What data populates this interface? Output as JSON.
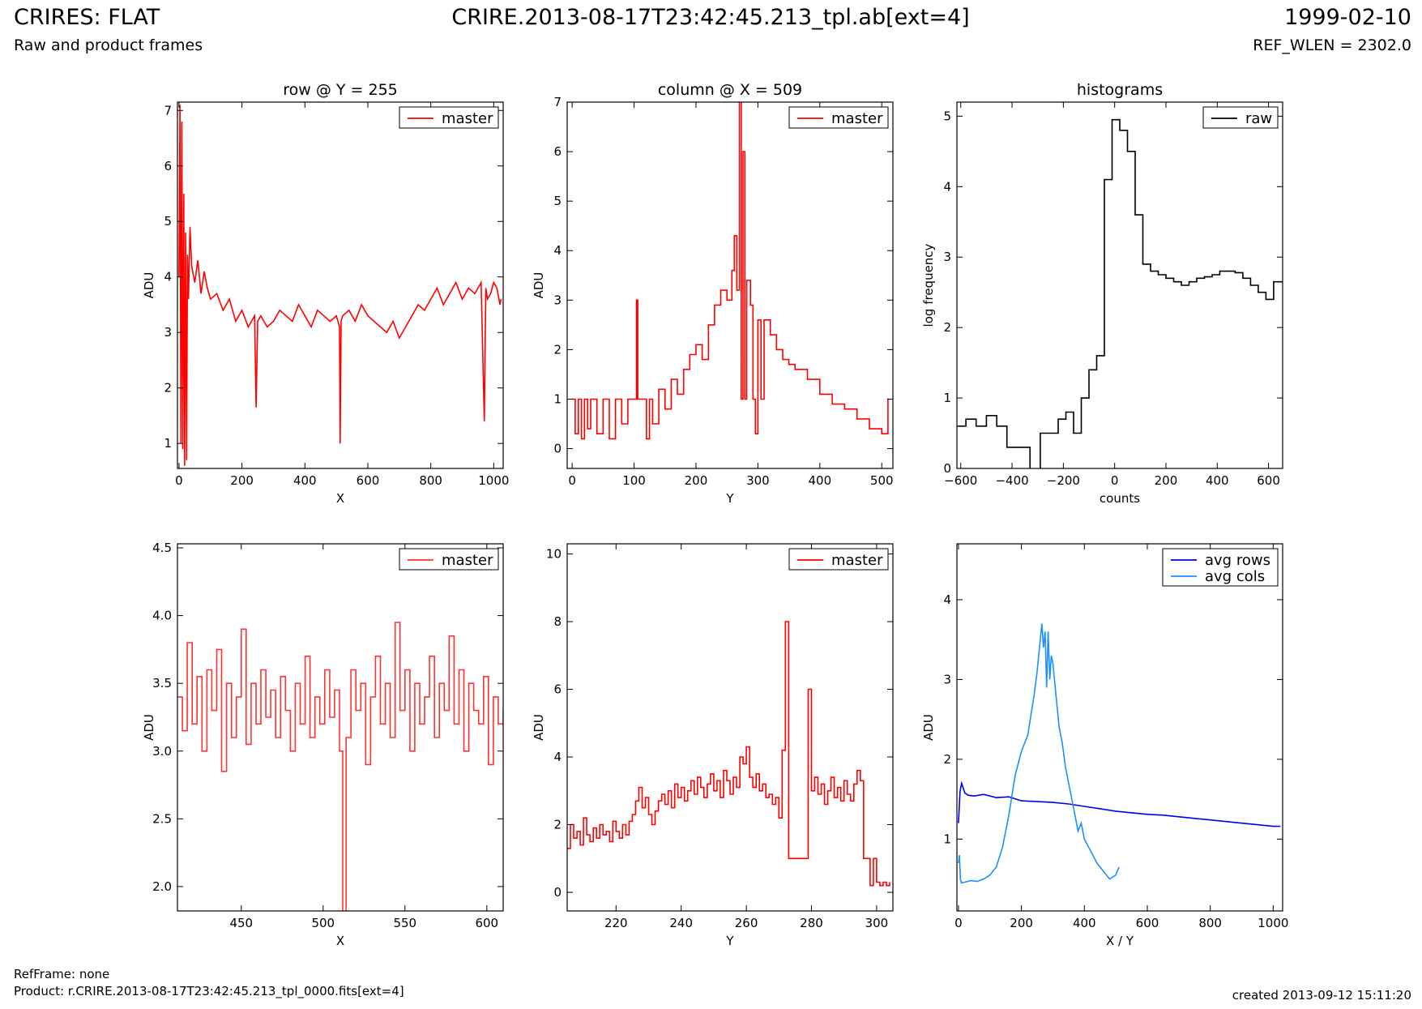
{
  "header": {
    "title_left": "CRIRES: FLAT",
    "title_center": "CRIRE.2013-08-17T23:42:45.213_tpl.ab[ext=4]",
    "title_right": "1999-02-10",
    "subtitle_left": "Raw and product frames",
    "subtitle_right": "REF_WLEN = 2302.0"
  },
  "footer": {
    "refframe": "RefFrame: none",
    "product": "Product: r.CRIRE.2013-08-17T23:42:45.213_tpl_0000.fits[ext=4]",
    "created": "created 2013-09-12 15:11:20"
  },
  "chart_data": [
    {
      "id": "row",
      "type": "line",
      "title": "row @ Y = 255",
      "xlabel": "X",
      "ylabel": "ADU",
      "xlim": [
        -5,
        1030
      ],
      "ylim": [
        0.55,
        7.15
      ],
      "xticks": [
        0,
        200,
        400,
        600,
        800,
        1000
      ],
      "xticklabels": [
        "0",
        "200",
        "400",
        "600",
        "800",
        "1000"
      ],
      "yticks": [
        1,
        2,
        3,
        4,
        5,
        6,
        7
      ],
      "yticklabels": [
        "1",
        "2",
        "3",
        "4",
        "5",
        "6",
        "7"
      ],
      "legend_position": "top-right",
      "series": [
        {
          "name": "master",
          "color": "#ff0000",
          "step": false,
          "x": [
            0,
            3,
            6,
            9,
            12,
            15,
            18,
            21,
            24,
            27,
            30,
            35,
            40,
            50,
            60,
            70,
            80,
            90,
            100,
            120,
            140,
            160,
            180,
            200,
            220,
            240,
            245,
            250,
            260,
            280,
            300,
            320,
            340,
            360,
            380,
            400,
            420,
            440,
            460,
            480,
            500,
            510,
            512,
            515,
            520,
            540,
            560,
            580,
            600,
            620,
            640,
            660,
            680,
            700,
            720,
            740,
            760,
            780,
            800,
            820,
            840,
            860,
            880,
            900,
            920,
            940,
            960,
            970,
            975,
            980,
            990,
            1000,
            1010,
            1020,
            1023
          ],
          "y": [
            4.0,
            7.1,
            1.0,
            6.8,
            0.9,
            5.5,
            0.6,
            4.8,
            0.7,
            4.4,
            3.6,
            4.9,
            4.2,
            3.9,
            4.3,
            3.7,
            4.1,
            3.8,
            3.6,
            3.7,
            3.4,
            3.6,
            3.2,
            3.4,
            3.1,
            3.3,
            1.65,
            3.2,
            3.3,
            3.1,
            3.2,
            3.4,
            3.3,
            3.2,
            3.5,
            3.3,
            3.1,
            3.4,
            3.3,
            3.2,
            3.3,
            3.1,
            1.0,
            3.2,
            3.3,
            3.4,
            3.2,
            3.5,
            3.3,
            3.2,
            3.1,
            3.0,
            3.2,
            2.9,
            3.1,
            3.3,
            3.5,
            3.4,
            3.6,
            3.8,
            3.5,
            3.7,
            3.9,
            3.6,
            3.8,
            3.7,
            3.9,
            1.4,
            3.8,
            3.6,
            3.7,
            3.9,
            3.8,
            3.5,
            3.6
          ]
        }
      ]
    },
    {
      "id": "column",
      "type": "line",
      "title": "column @ X = 509",
      "xlabel": "Y",
      "ylabel": "ADU",
      "xlim": [
        -8,
        518
      ],
      "ylim": [
        -0.4,
        7.0
      ],
      "xticks": [
        0,
        100,
        200,
        300,
        400,
        500
      ],
      "xticklabels": [
        "0",
        "100",
        "200",
        "300",
        "400",
        "500"
      ],
      "yticks": [
        0,
        1,
        2,
        3,
        4,
        5,
        6,
        7
      ],
      "yticklabels": [
        "0",
        "1",
        "2",
        "3",
        "4",
        "5",
        "6",
        "7"
      ],
      "legend_position": "top-right",
      "series": [
        {
          "name": "master",
          "color": "#ff0000",
          "step": true,
          "x": [
            0,
            5,
            10,
            15,
            20,
            25,
            30,
            40,
            50,
            60,
            70,
            80,
            90,
            100,
            104,
            106,
            110,
            120,
            125,
            130,
            140,
            150,
            160,
            170,
            180,
            190,
            200,
            210,
            220,
            230,
            240,
            250,
            258,
            262,
            266,
            270,
            273,
            276,
            279,
            282,
            288,
            292,
            296,
            300,
            305,
            310,
            320,
            330,
            340,
            350,
            360,
            380,
            400,
            420,
            440,
            460,
            480,
            500,
            510,
            512
          ],
          "y": [
            1.0,
            0.3,
            1.0,
            0.2,
            1.0,
            0.4,
            1.0,
            0.3,
            1.0,
            0.2,
            1.0,
            0.5,
            1.0,
            1.0,
            3.0,
            1.0,
            1.0,
            0.2,
            1.0,
            0.5,
            1.2,
            0.8,
            1.4,
            1.1,
            1.6,
            1.9,
            2.1,
            1.8,
            2.5,
            2.9,
            3.2,
            3.0,
            3.6,
            4.3,
            3.2,
            7.0,
            1.0,
            6.0,
            1.0,
            3.4,
            2.9,
            1.0,
            0.3,
            2.6,
            1.0,
            2.6,
            2.3,
            2.0,
            1.8,
            1.7,
            1.6,
            1.4,
            1.1,
            0.9,
            0.8,
            0.6,
            0.4,
            0.3,
            1.0,
            1.0
          ]
        }
      ]
    },
    {
      "id": "hist",
      "type": "line",
      "title": "histograms",
      "xlabel": "counts",
      "ylabel": "log frequency",
      "xlim": [
        -615,
        655
      ],
      "ylim": [
        0,
        5.2
      ],
      "xticks": [
        -600,
        -400,
        -200,
        0,
        200,
        400,
        600
      ],
      "xticklabels": [
        "−600",
        "−400",
        "−200",
        "0",
        "200",
        "400",
        "600"
      ],
      "yticks": [
        0,
        1,
        2,
        3,
        4,
        5
      ],
      "yticklabels": [
        "0",
        "1",
        "2",
        "3",
        "4",
        "5"
      ],
      "legend_position": "top-right",
      "series": [
        {
          "name": "raw",
          "color": "#000000",
          "step": true,
          "x": [
            -615,
            -580,
            -540,
            -500,
            -460,
            -420,
            -380,
            -345,
            -330,
            -290,
            -250,
            -220,
            -190,
            -160,
            -130,
            -100,
            -70,
            -40,
            -10,
            20,
            50,
            80,
            110,
            140,
            170,
            200,
            230,
            260,
            290,
            320,
            350,
            380,
            410,
            440,
            470,
            500,
            530,
            560,
            590,
            620,
            655
          ],
          "y": [
            0.6,
            0.7,
            0.6,
            0.75,
            0.6,
            0.3,
            0.3,
            0.3,
            -0.3,
            0.5,
            0.5,
            0.7,
            0.8,
            0.5,
            1.0,
            1.4,
            1.6,
            4.1,
            4.95,
            4.8,
            4.5,
            3.6,
            2.9,
            2.8,
            2.75,
            2.7,
            2.65,
            2.6,
            2.65,
            2.7,
            2.72,
            2.75,
            2.8,
            2.8,
            2.78,
            2.7,
            2.6,
            2.5,
            2.4,
            2.65,
            2.65
          ]
        }
      ]
    },
    {
      "id": "row-zoom",
      "type": "line",
      "title": "",
      "xlabel": "X",
      "ylabel": "ADU",
      "xlim": [
        411,
        610
      ],
      "ylim": [
        1.82,
        4.53
      ],
      "xticks": [
        450,
        500,
        550,
        600
      ],
      "xticklabels": [
        "450",
        "500",
        "550",
        "600"
      ],
      "yticks": [
        2.0,
        2.5,
        3.0,
        3.5,
        4.0,
        4.5
      ],
      "yticklabels": [
        "2.0",
        "2.5",
        "3.0",
        "3.5",
        "4.0",
        "4.5"
      ],
      "legend_position": "top-right",
      "series": [
        {
          "name": "master",
          "color": "#ff3333",
          "step": true,
          "x": [
            411,
            414,
            417,
            420,
            423,
            426,
            429,
            432,
            435,
            438,
            441,
            444,
            447,
            450,
            453,
            456,
            459,
            462,
            465,
            468,
            471,
            474,
            477,
            480,
            483,
            486,
            489,
            492,
            495,
            498,
            501,
            504,
            507,
            510,
            512,
            514,
            517,
            520,
            523,
            526,
            529,
            532,
            535,
            538,
            541,
            544,
            547,
            550,
            553,
            556,
            559,
            562,
            565,
            568,
            571,
            574,
            577,
            580,
            583,
            586,
            589,
            592,
            595,
            598,
            601,
            604,
            607,
            610
          ],
          "y": [
            3.4,
            3.15,
            3.8,
            3.2,
            3.55,
            3.0,
            3.6,
            3.3,
            3.75,
            2.85,
            3.5,
            3.1,
            3.4,
            3.9,
            3.05,
            3.5,
            3.2,
            3.6,
            3.25,
            3.45,
            3.1,
            3.55,
            3.3,
            3.0,
            3.5,
            3.2,
            3.7,
            3.1,
            3.4,
            3.2,
            3.6,
            3.25,
            3.45,
            3.0,
            1.8,
            3.1,
            3.6,
            3.3,
            3.5,
            2.9,
            3.4,
            3.7,
            3.2,
            3.5,
            3.1,
            3.95,
            3.3,
            3.6,
            3.0,
            3.5,
            3.2,
            3.4,
            3.7,
            3.1,
            3.5,
            3.3,
            3.85,
            3.2,
            3.6,
            3.0,
            3.5,
            3.3,
            3.2,
            3.55,
            2.9,
            3.4,
            3.2,
            3.3
          ]
        }
      ]
    },
    {
      "id": "column-zoom",
      "type": "line",
      "title": "",
      "xlabel": "Y",
      "ylabel": "ADU",
      "xlim": [
        205,
        305
      ],
      "ylim": [
        -0.55,
        10.3
      ],
      "xticks": [
        220,
        240,
        260,
        280,
        300
      ],
      "xticklabels": [
        "220",
        "240",
        "260",
        "280",
        "300"
      ],
      "yticks": [
        0,
        2,
        4,
        6,
        8,
        10
      ],
      "yticklabels": [
        "0",
        "2",
        "4",
        "6",
        "8",
        "10"
      ],
      "legend_position": "top-right",
      "series": [
        {
          "name": "master",
          "color": "#ff0000",
          "step": true,
          "x": [
            205,
            206,
            207,
            208,
            209,
            210,
            211,
            212,
            213,
            214,
            215,
            216,
            217,
            218,
            219,
            220,
            221,
            222,
            223,
            224,
            225,
            226,
            227,
            228,
            229,
            230,
            231,
            232,
            233,
            234,
            235,
            236,
            237,
            238,
            239,
            240,
            241,
            242,
            243,
            244,
            245,
            246,
            247,
            248,
            249,
            250,
            251,
            252,
            253,
            254,
            255,
            256,
            257,
            258,
            259,
            260,
            261,
            262,
            263,
            264,
            265,
            266,
            267,
            268,
            269,
            270,
            271,
            272,
            273,
            274,
            275,
            276,
            277,
            278,
            279,
            280,
            281,
            282,
            283,
            284,
            285,
            286,
            287,
            288,
            289,
            290,
            291,
            292,
            293,
            294,
            295,
            296,
            297,
            298,
            299,
            300,
            301,
            302,
            303,
            304
          ],
          "y": [
            1.3,
            2.0,
            1.6,
            1.8,
            1.4,
            2.2,
            1.7,
            1.5,
            1.9,
            1.6,
            2.0,
            1.7,
            1.8,
            1.5,
            2.1,
            1.8,
            1.6,
            2.0,
            1.7,
            2.1,
            2.3,
            2.7,
            3.1,
            2.5,
            2.8,
            2.3,
            2.0,
            2.4,
            2.7,
            2.9,
            2.6,
            3.0,
            2.5,
            3.2,
            2.8,
            3.1,
            2.7,
            3.0,
            3.3,
            2.9,
            3.4,
            3.1,
            2.8,
            3.2,
            3.5,
            3.0,
            3.3,
            2.8,
            3.6,
            3.3,
            2.9,
            3.4,
            3.1,
            4.0,
            3.8,
            4.3,
            3.4,
            3.1,
            3.5,
            3.0,
            3.2,
            2.8,
            2.9,
            2.6,
            2.8,
            2.2,
            4.2,
            8.0,
            1.0,
            1.0,
            1.0,
            1.0,
            1.0,
            1.0,
            6.0,
            3.0,
            3.4,
            2.9,
            3.2,
            2.6,
            3.0,
            3.4,
            2.8,
            3.1,
            2.7,
            3.3,
            2.9,
            2.7,
            3.2,
            3.6,
            3.3,
            1.0,
            1.0,
            0.2,
            1.0,
            0.3,
            0.2,
            0.3,
            0.2,
            0.3
          ]
        }
      ]
    },
    {
      "id": "avg",
      "type": "line",
      "title": "",
      "xlabel": "X / Y",
      "ylabel": "ADU",
      "xlim": [
        -5,
        1030
      ],
      "ylim": [
        0.1,
        4.7
      ],
      "xticks": [
        0,
        200,
        400,
        600,
        800,
        1000
      ],
      "xticklabels": [
        "0",
        "200",
        "400",
        "600",
        "800",
        "1000"
      ],
      "yticks": [
        1,
        2,
        3,
        4
      ],
      "yticklabels": [
        "1",
        "2",
        "3",
        "4"
      ],
      "legend_position": "top-right",
      "series": [
        {
          "name": "avg rows",
          "color": "#0000ee",
          "step": false,
          "x": [
            0,
            5,
            10,
            20,
            30,
            50,
            80,
            120,
            160,
            200,
            250,
            300,
            350,
            400,
            450,
            500,
            550,
            600,
            650,
            700,
            750,
            800,
            850,
            900,
            950,
            1000,
            1023
          ],
          "y": [
            1.2,
            1.6,
            1.7,
            1.58,
            1.55,
            1.54,
            1.56,
            1.52,
            1.53,
            1.48,
            1.47,
            1.46,
            1.44,
            1.41,
            1.38,
            1.35,
            1.33,
            1.31,
            1.3,
            1.28,
            1.26,
            1.24,
            1.22,
            1.2,
            1.18,
            1.16,
            1.16
          ]
        },
        {
          "name": "avg cols",
          "color": "#1e8fff",
          "step": false,
          "x": [
            0,
            3,
            6,
            10,
            20,
            40,
            60,
            80,
            100,
            120,
            140,
            160,
            180,
            200,
            220,
            240,
            250,
            260,
            265,
            270,
            275,
            280,
            285,
            290,
            295,
            300,
            310,
            320,
            330,
            340,
            350,
            360,
            370,
            380,
            390,
            400,
            420,
            440,
            460,
            480,
            500,
            510
          ],
          "y": [
            0.7,
            0.8,
            0.5,
            0.45,
            0.46,
            0.48,
            0.47,
            0.5,
            0.55,
            0.65,
            0.9,
            1.3,
            1.8,
            2.1,
            2.3,
            2.8,
            3.1,
            3.5,
            3.7,
            3.4,
            3.6,
            2.9,
            3.6,
            3.0,
            3.3,
            3.2,
            2.8,
            2.4,
            2.2,
            1.9,
            1.7,
            1.5,
            1.3,
            1.1,
            1.2,
            1.0,
            0.85,
            0.7,
            0.6,
            0.5,
            0.55,
            0.65
          ]
        }
      ]
    }
  ]
}
